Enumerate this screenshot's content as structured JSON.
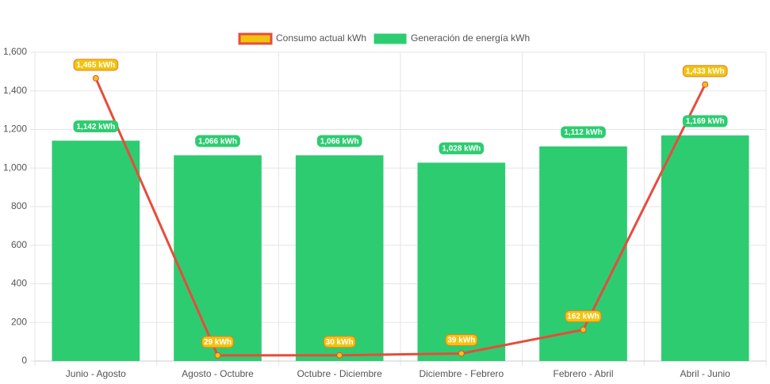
{
  "chart_data": {
    "type": "bar-line",
    "categories": [
      "Junio - Agosto",
      "Agosto - Octubre",
      "Octubre - Diciembre",
      "Diciembre - Febrero",
      "Febrero - Abril",
      "Abril - Junio"
    ],
    "series": [
      {
        "name": "Consumo actual kWh",
        "type": "line",
        "color": "#e74c3c",
        "point_color": "#f1c40f",
        "values": [
          1465,
          29,
          30,
          39,
          162,
          1433
        ],
        "value_labels": [
          "1,465 kWh",
          "29 kWh",
          "30 kWh",
          "39 kWh",
          "162 kWh",
          "1,433 kWh"
        ]
      },
      {
        "name": "Generación de energía kWh",
        "type": "bar",
        "color": "#2ecc71",
        "values": [
          1142,
          1066,
          1066,
          1028,
          1112,
          1169
        ],
        "value_labels": [
          "1,142 kWh",
          "1,066 kWh",
          "1,066 kWh",
          "1,028 kWh",
          "1,112 kWh",
          "1,169 kWh"
        ]
      }
    ],
    "ylim": [
      0,
      1600
    ],
    "yticks": [
      0,
      200,
      400,
      600,
      800,
      {
        "value": 1000,
        "label": "1,000"
      },
      {
        "value": 1200,
        "label": "1,200"
      },
      {
        "value": 1400,
        "label": "1,400"
      },
      {
        "value": 1600,
        "label": "1,600"
      }
    ],
    "grid": true,
    "legend": "top"
  }
}
